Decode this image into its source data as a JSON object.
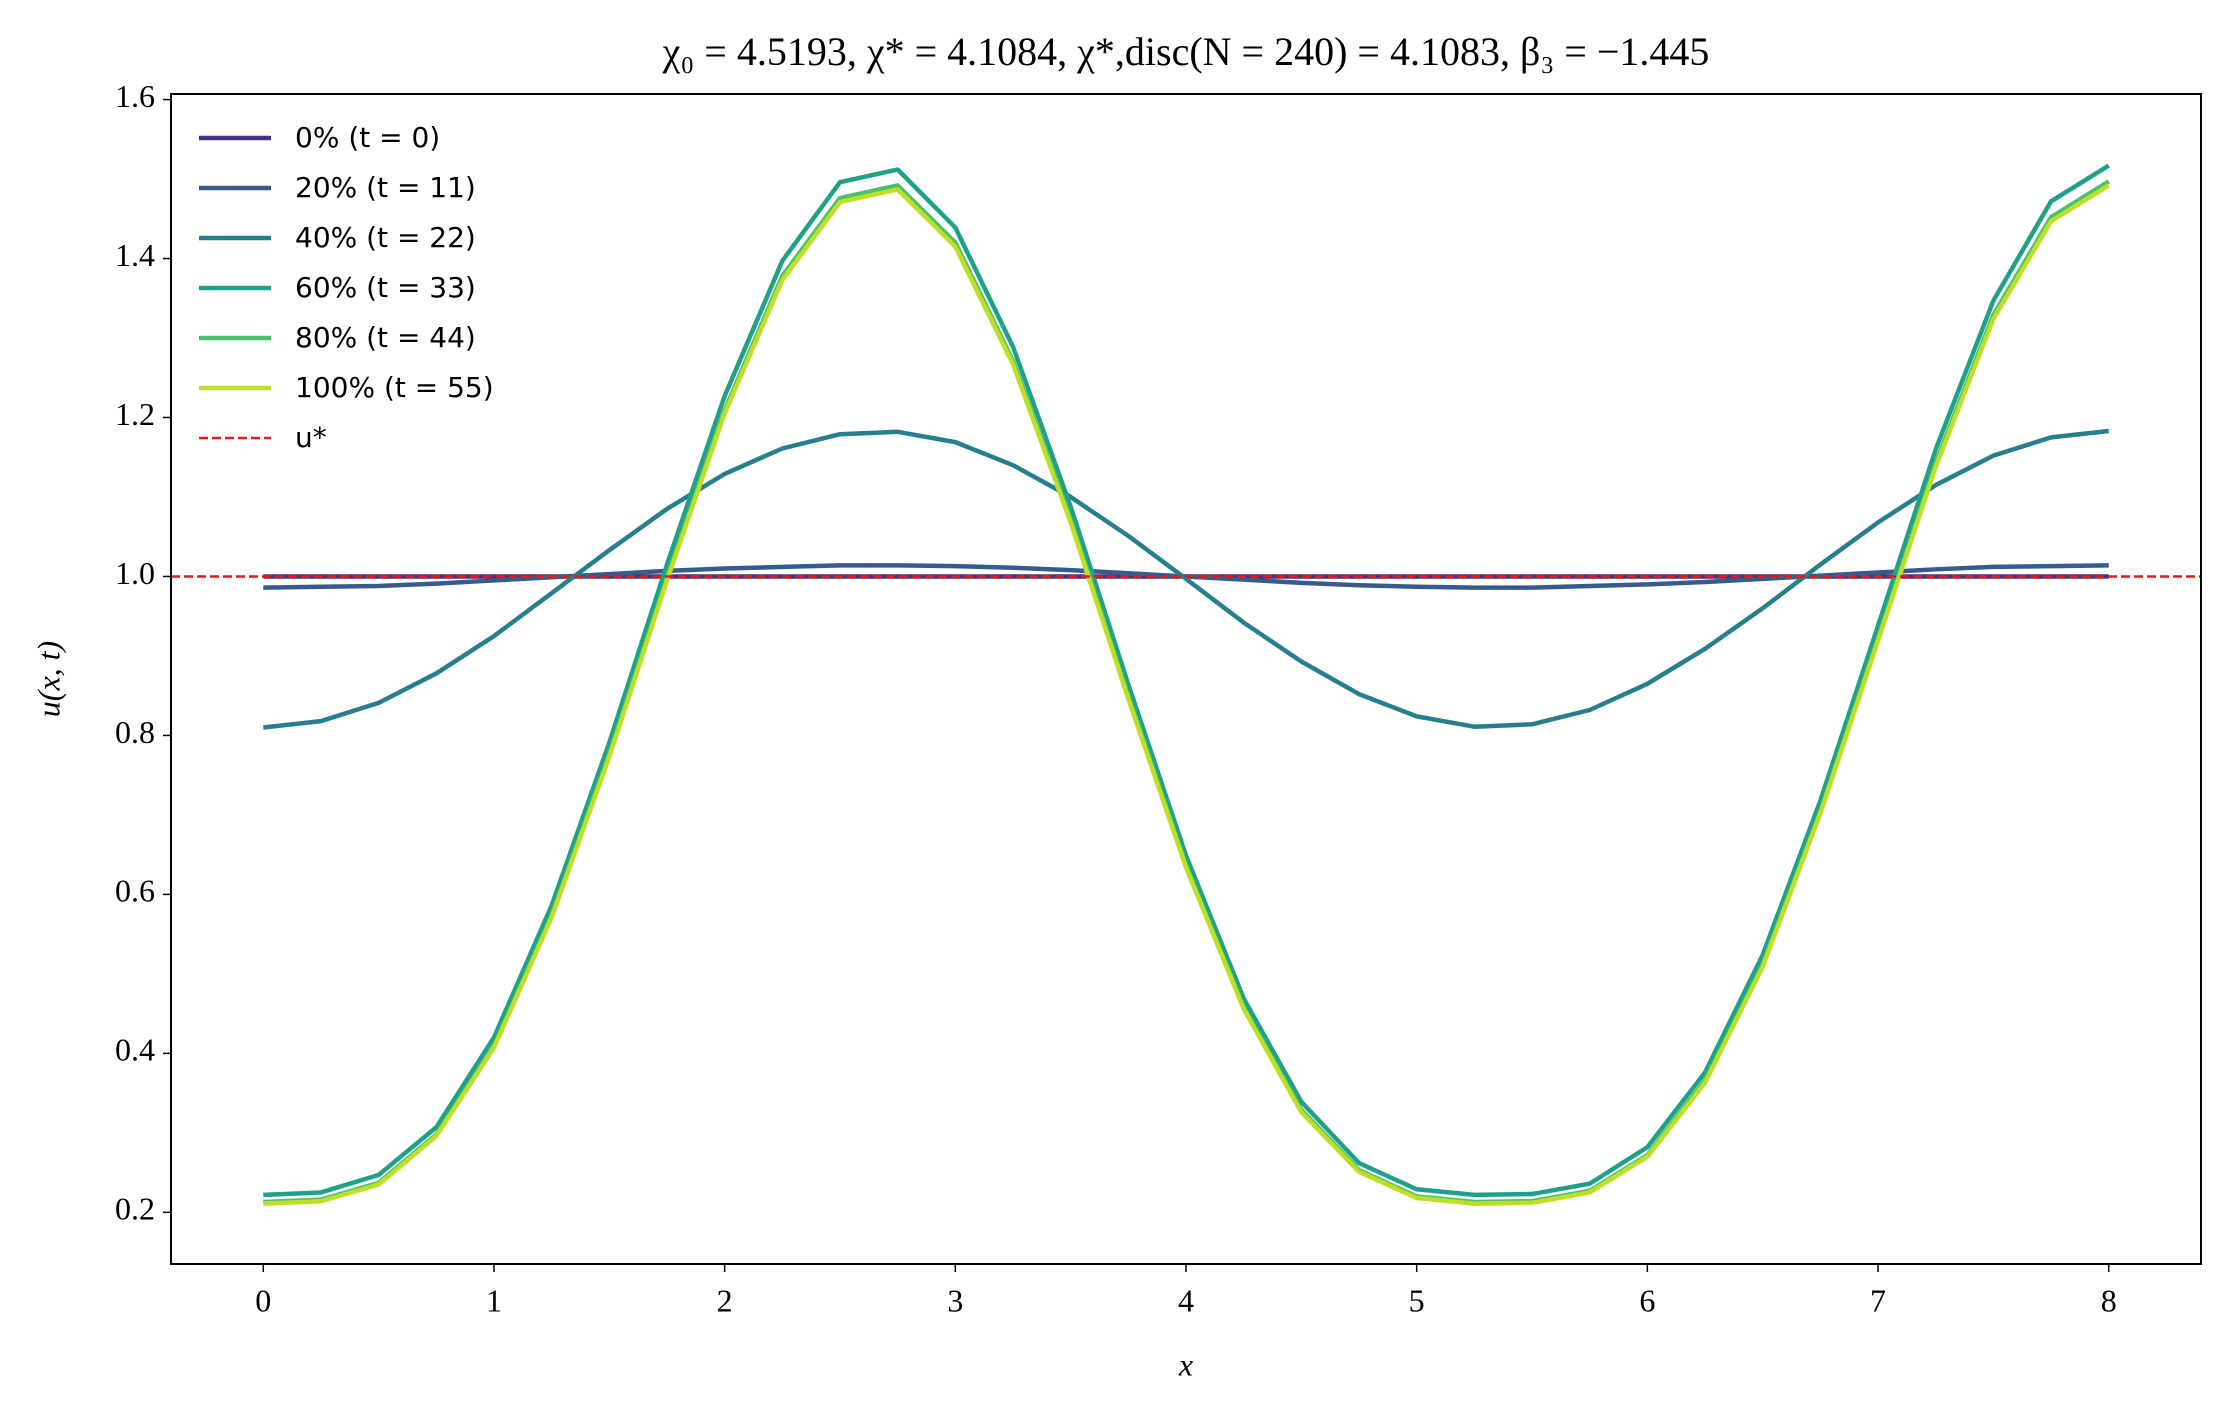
{
  "chart_data": {
    "type": "line",
    "title": "χ₀ = 4.5193,  χ* = 4.1084,  χ*,disc(N = 240) = 4.1083,  β₃ = −1.445",
    "x_label": "x",
    "y_label": "u(x, t)",
    "x": [
      0,
      0.25,
      0.5,
      0.75,
      1,
      1.25,
      1.5,
      1.75,
      2,
      2.25,
      2.5,
      2.75,
      3,
      3.25,
      3.5,
      3.75,
      4,
      4.25,
      4.5,
      4.75,
      5,
      5.25,
      5.5,
      5.75,
      6,
      6.25,
      6.5,
      6.75,
      7,
      7.25,
      7.5,
      7.75,
      8
    ],
    "series": [
      {
        "name": "0% (t = 0)",
        "color": "#46327e",
        "values": [
          1,
          1,
          1,
          1,
          1,
          1,
          1,
          1,
          1,
          1,
          1,
          1,
          1,
          1,
          1,
          1,
          1,
          1,
          1,
          1,
          1,
          1,
          1,
          1,
          1,
          1,
          1,
          1,
          1,
          1,
          1,
          1,
          1
        ]
      },
      {
        "name": "20% (t = 11)",
        "color": "#365c8d",
        "values": [
          0.986,
          0.987,
          0.988,
          0.991,
          0.995,
          0.999,
          1.003,
          1.007,
          1.01,
          1.012,
          1.014,
          1.014,
          1.013,
          1.011,
          1.008,
          1.004,
          1.0,
          0.996,
          0.992,
          0.989,
          0.987,
          0.986,
          0.986,
          0.988,
          0.99,
          0.993,
          0.997,
          1.001,
          1.005,
          1.009,
          1.012,
          1.013,
          1.014
        ]
      },
      {
        "name": "40% (t = 22)",
        "color": "#277f8e",
        "values": [
          0.81,
          0.818,
          0.841,
          0.878,
          0.925,
          0.979,
          1.033,
          1.085,
          1.129,
          1.161,
          1.179,
          1.182,
          1.169,
          1.14,
          1.1,
          1.051,
          0.997,
          0.942,
          0.893,
          0.852,
          0.824,
          0.811,
          0.814,
          0.832,
          0.865,
          0.909,
          0.96,
          1.015,
          1.068,
          1.115,
          1.152,
          1.175,
          1.183
        ]
      },
      {
        "name": "60% (t = 33)",
        "color": "#1fa187",
        "values": [
          0.222,
          0.225,
          0.247,
          0.307,
          0.42,
          0.586,
          0.791,
          1.015,
          1.227,
          1.397,
          1.496,
          1.512,
          1.439,
          1.289,
          1.088,
          0.864,
          0.649,
          0.469,
          0.339,
          0.262,
          0.229,
          0.222,
          0.223,
          0.236,
          0.282,
          0.376,
          0.524,
          0.718,
          0.938,
          1.16,
          1.347,
          1.472,
          1.517
        ]
      },
      {
        "name": "80% (t = 44)",
        "color": "#4ac16d",
        "values": [
          0.213,
          0.216,
          0.237,
          0.298,
          0.409,
          0.574,
          0.777,
          0.999,
          1.209,
          1.378,
          1.476,
          1.492,
          1.42,
          1.271,
          1.072,
          0.85,
          0.637,
          0.458,
          0.329,
          0.253,
          0.22,
          0.213,
          0.214,
          0.227,
          0.272,
          0.366,
          0.512,
          0.705,
          0.923,
          1.143,
          1.329,
          1.452,
          1.497
        ]
      },
      {
        "name": "100% (t = 55)",
        "color": "#bddf26",
        "values": [
          0.211,
          0.214,
          0.235,
          0.296,
          0.407,
          0.571,
          0.773,
          0.995,
          1.205,
          1.373,
          1.471,
          1.487,
          1.415,
          1.267,
          1.068,
          0.846,
          0.634,
          0.456,
          0.326,
          0.251,
          0.218,
          0.211,
          0.212,
          0.225,
          0.27,
          0.363,
          0.509,
          0.702,
          0.919,
          1.138,
          1.324,
          1.447,
          1.492
        ]
      }
    ],
    "reference_line": {
      "name": "u*",
      "value": 1,
      "color": "#e41a1c",
      "style": "dashed"
    },
    "xlim": [
      -0.4,
      8.4
    ],
    "ylim": [
      0.135,
      1.607
    ],
    "xticks": [
      0,
      1,
      2,
      3,
      4,
      5,
      6,
      7,
      8
    ],
    "yticks": [
      0.2,
      0.4,
      0.6,
      0.8,
      {
        "value": 1,
        "label": "1.0"
      },
      1.2,
      1.4,
      1.6
    ],
    "grid": false,
    "legend": "upper left"
  }
}
